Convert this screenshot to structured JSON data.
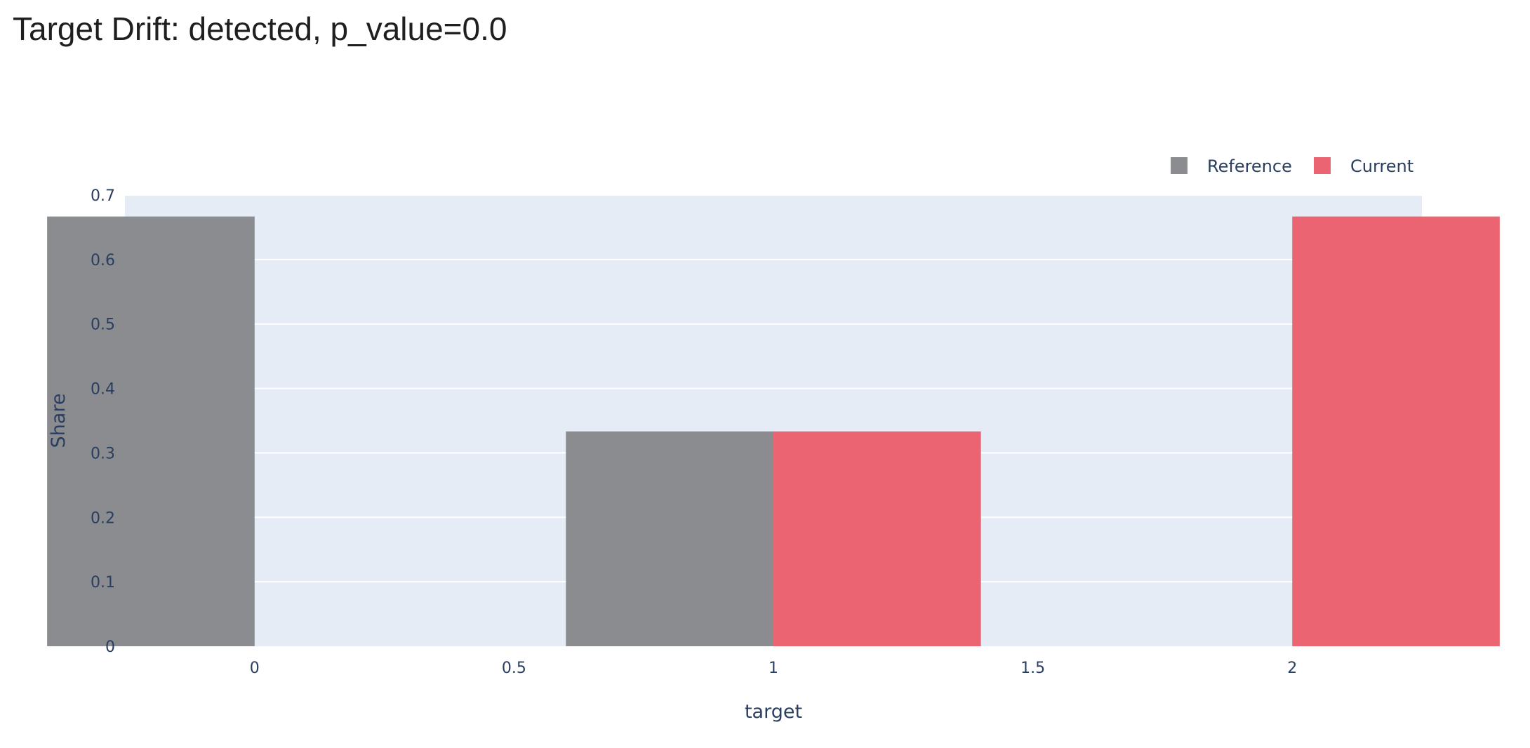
{
  "page": {
    "title": "Target Drift: detected, p_value=0.0"
  },
  "chart_data": {
    "type": "bar",
    "title": "",
    "xlabel": "target",
    "ylabel": "Share",
    "x": [
      0,
      1,
      2
    ],
    "series": [
      {
        "name": "Reference",
        "color": "#8a8c8f",
        "values": [
          0.6667,
          0.3333,
          0
        ]
      },
      {
        "name": "Current",
        "color": "#ea6571",
        "values": [
          0,
          0.3333,
          0.6667
        ]
      }
    ],
    "xlim": [
      -0.25,
      2.25
    ],
    "ylim": [
      0,
      0.7
    ],
    "xticks": [
      0,
      0.5,
      1,
      1.5,
      2
    ],
    "xtick_labels": [
      "0",
      "0.5",
      "1",
      "1.5",
      "2"
    ],
    "yticks": [
      0,
      0.1,
      0.2,
      0.3,
      0.4,
      0.5,
      0.6,
      0.7
    ],
    "ytick_labels": [
      "0",
      "0.1",
      "0.2",
      "0.3",
      "0.4",
      "0.5",
      "0.6",
      "0.7"
    ],
    "grid": true,
    "legend_position": "top-right",
    "colors": {
      "plot_background": "#e5ecf6",
      "gridline": "#ffffff",
      "text": "#2a3f5f"
    }
  }
}
